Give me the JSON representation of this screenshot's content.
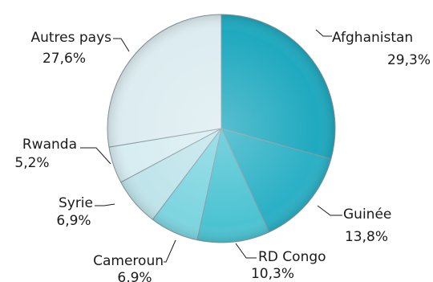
{
  "chart_data": {
    "type": "pie",
    "title": "",
    "slices": [
      {
        "name": "Afghanistan",
        "value": 29.3,
        "label": "29,3%",
        "color": "#1fa9bf"
      },
      {
        "name": "Guinée",
        "value": 13.8,
        "label": "13,8%",
        "color": "#2bb0c5"
      },
      {
        "name": "RD Congo",
        "value": 10.3,
        "label": "10,3%",
        "color": "#4cc3d2"
      },
      {
        "name": "Cameroun",
        "value": 6.9,
        "label": "6,9%",
        "color": "#7dd5e0"
      },
      {
        "name": "Syrie",
        "value": 6.9,
        "label": "6,9%",
        "color": "#bfe4ea"
      },
      {
        "name": "Rwanda",
        "value": 5.2,
        "label": "5,2%",
        "color": "#d7edf1"
      },
      {
        "name": "Autres pays",
        "value": 27.6,
        "label": "27,6%",
        "color": "#dcecf0"
      }
    ],
    "start_angle": "12 o'clock",
    "direction": "clockwise",
    "legend": "none",
    "labels": "outside with leader lines"
  }
}
